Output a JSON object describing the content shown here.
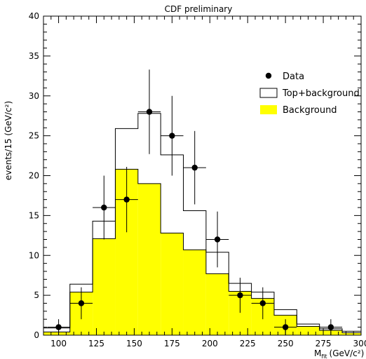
{
  "chart_data": {
    "type": "histogram",
    "title": "CDF preliminary",
    "xlabel": "M",
    "xlabel_subscript": "fit",
    "xlabel_unit": "(GeV/c²)",
    "ylabel": "events/15 (GeV/c²)",
    "xlim": [
      90,
      300
    ],
    "ylim": [
      0,
      40
    ],
    "x_ticks": [
      100,
      125,
      150,
      175,
      200,
      225,
      250,
      275,
      300
    ],
    "y_ticks": [
      0,
      5,
      10,
      15,
      20,
      25,
      30,
      35,
      40
    ],
    "bin_edges": [
      90,
      107.5,
      122.5,
      137.5,
      152.5,
      167.5,
      182.5,
      197.5,
      212.5,
      227.5,
      242.5,
      257.5,
      272.5,
      287.5,
      300
    ],
    "background": [
      0.4,
      5.4,
      12.1,
      20.8,
      19.0,
      12.8,
      10.7,
      7.7,
      5.5,
      4.6,
      2.5,
      1.1,
      0.6,
      0.3
    ],
    "top_plus_background": [
      0.9,
      6.4,
      14.3,
      25.9,
      27.8,
      22.6,
      15.6,
      10.4,
      6.5,
      5.4,
      3.2,
      1.4,
      0.8,
      0.5
    ],
    "data_points": [
      {
        "x": 100,
        "y": 1,
        "err": 1.0
      },
      {
        "x": 115,
        "y": 4,
        "err": 2.0
      },
      {
        "x": 130,
        "y": 16,
        "err": 4.0
      },
      {
        "x": 145,
        "y": 17,
        "err": 4.1
      },
      {
        "x": 160,
        "y": 28,
        "err": 5.3
      },
      {
        "x": 175,
        "y": 25,
        "err": 5.0
      },
      {
        "x": 190,
        "y": 21,
        "err": 4.6
      },
      {
        "x": 205,
        "y": 12,
        "err": 3.5
      },
      {
        "x": 220,
        "y": 5,
        "err": 2.2
      },
      {
        "x": 235,
        "y": 4,
        "err": 2.0
      },
      {
        "x": 250,
        "y": 1,
        "err": 1.0
      },
      {
        "x": 280,
        "y": 1,
        "err": 1.0
      }
    ],
    "data_xerr": 7.5,
    "legend": [
      {
        "label": "Data",
        "kind": "marker"
      },
      {
        "label": "Top+background",
        "kind": "open-box"
      },
      {
        "label": "Background",
        "kind": "filled-box"
      }
    ],
    "legend_position": "top-right",
    "colors": {
      "background_fill": "#ffff00",
      "outline": "#000000",
      "marker": "#000000"
    }
  }
}
